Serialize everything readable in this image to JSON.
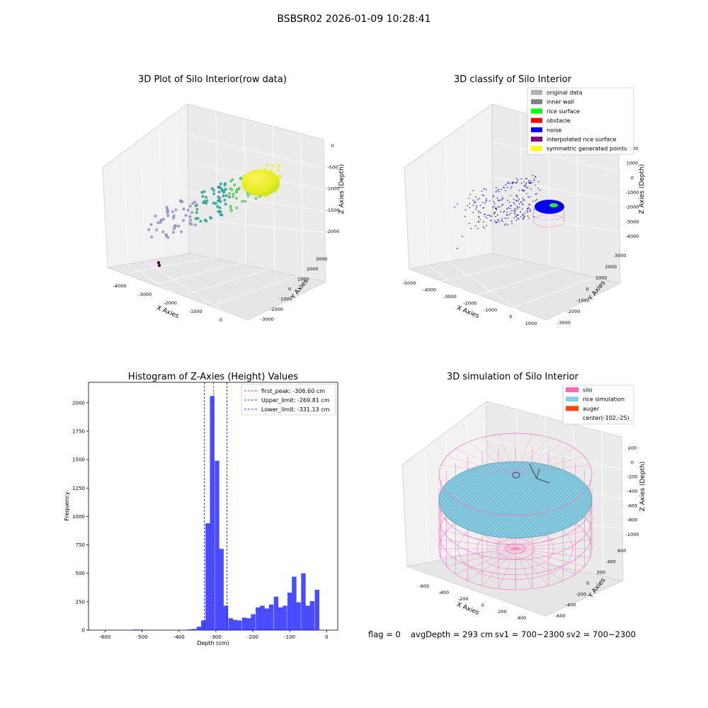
{
  "figure": {
    "suptitle": "BSBSR02 2026-01-09 10:28:41",
    "footer": {
      "flag": "flag = 0",
      "avg_depth": "avgDepth = 293 cm",
      "sv1": "sv1 = 700~2300",
      "sv2": "sv2 = 700~2300"
    }
  },
  "chart_data": [
    {
      "type": "scatter",
      "projection": "3d",
      "title": "3D Plot of Silo Interior(row data)",
      "xlabel": "X Axies",
      "ylabel": "Y Axies",
      "zlabel": "Z Axies (Depth)",
      "x_ticks": [
        "-4000",
        "-3000",
        "-2000",
        "-1000",
        "0"
      ],
      "y_ticks": [
        "-3000",
        "-2000",
        "-1000",
        "0",
        "1000",
        "2000",
        "3000"
      ],
      "z_ticks": [
        "0",
        "-500",
        "-1000",
        "-1500",
        "-2000"
      ],
      "colormap": "viridis",
      "description_colors": [
        "#440154",
        "#8c92c1",
        "#2a9d8f",
        "#5ec962",
        "#fde725"
      ]
    },
    {
      "type": "scatter",
      "projection": "3d",
      "title": "3D classify of Silo Interior",
      "xlabel": "X Axies",
      "ylabel": "Y Axies",
      "zlabel": "Z Axies (Depth)",
      "x_ticks": [
        "-5000",
        "-4000",
        "-3000",
        "-2000",
        "-1000",
        "0",
        "1000"
      ],
      "y_ticks": [
        "-3000",
        "-2000",
        "-1000",
        "0",
        "1000",
        "2000",
        "3000"
      ],
      "z_ticks": [
        "2000",
        "1000",
        "0",
        "-1000",
        "-2000",
        "-3000",
        "-4000"
      ],
      "legend_position": "top-right",
      "legend": [
        {
          "label": "original data",
          "color": "#b3b3b3"
        },
        {
          "label": "inner wall",
          "color": "#808080"
        },
        {
          "label": "rice surface",
          "color": "#00ff00"
        },
        {
          "label": "obstacle",
          "color": "#ff0000"
        },
        {
          "label": "noise",
          "color": "#0000ff"
        },
        {
          "label": "interpolated rice surface",
          "color": "#800080"
        },
        {
          "label": "symmetric generated points",
          "color": "#ffff00"
        }
      ]
    },
    {
      "type": "bar",
      "title": "Histogram of Z-Axies (Height) Values",
      "xlabel": "Depth (cm)",
      "ylabel": "Frequency",
      "xlim": [
        -645,
        30
      ],
      "ylim": [
        0,
        2180
      ],
      "x_ticks": [
        -600,
        -500,
        -400,
        -300,
        -200,
        -100,
        0
      ],
      "y_ticks": [
        0,
        250,
        500,
        750,
        1000,
        1250,
        1500,
        1750,
        2000
      ],
      "bar_color": "#0000ff",
      "bin_width": 12.3,
      "bins": [
        {
          "x": -519,
          "y": 5
        },
        {
          "x": -506,
          "y": 5
        },
        {
          "x": -470,
          "y": 3
        },
        {
          "x": -383,
          "y": 2
        },
        {
          "x": -371,
          "y": 6
        },
        {
          "x": -359,
          "y": 10
        },
        {
          "x": -346,
          "y": 30
        },
        {
          "x": -334,
          "y": 85
        },
        {
          "x": -322,
          "y": 940
        },
        {
          "x": -310,
          "y": 2060
        },
        {
          "x": -297,
          "y": 1490
        },
        {
          "x": -285,
          "y": 715
        },
        {
          "x": -273,
          "y": 215
        },
        {
          "x": -260,
          "y": 105
        },
        {
          "x": -248,
          "y": 90
        },
        {
          "x": -236,
          "y": 85
        },
        {
          "x": -223,
          "y": 110
        },
        {
          "x": -211,
          "y": 105
        },
        {
          "x": -199,
          "y": 140
        },
        {
          "x": -186,
          "y": 200
        },
        {
          "x": -174,
          "y": 215
        },
        {
          "x": -162,
          "y": 190
        },
        {
          "x": -150,
          "y": 225
        },
        {
          "x": -137,
          "y": 295
        },
        {
          "x": -125,
          "y": 200
        },
        {
          "x": -113,
          "y": 215
        },
        {
          "x": -100,
          "y": 330
        },
        {
          "x": -88,
          "y": 470
        },
        {
          "x": -76,
          "y": 245
        },
        {
          "x": -63,
          "y": 500
        },
        {
          "x": -51,
          "y": 215
        },
        {
          "x": -39,
          "y": 255
        },
        {
          "x": -26,
          "y": 355
        }
      ],
      "vlines": [
        {
          "x": -306.6,
          "color": "#ff0000",
          "label": "first_peak: -306.60 cm"
        },
        {
          "x": -269.81,
          "color": "#0000ff",
          "label": "Upper_limit: -269.81 cm"
        },
        {
          "x": -331.13,
          "color": "#0000ff",
          "label": "Lower_limit: -331.13 cm"
        }
      ],
      "legend_position": "top-right"
    },
    {
      "type": "surface",
      "projection": "3d",
      "title": "3D simulation of Silo Interior",
      "xlabel": "X Axies",
      "ylabel": "Y Axies",
      "zlabel": "Z Axies (Depth)",
      "x_ticks": [
        "-600",
        "-400",
        "-200",
        "0",
        "200",
        "400"
      ],
      "y_ticks": [
        "-600",
        "-400",
        "-200",
        "0",
        "200",
        "400",
        "600"
      ],
      "z_ticks": [
        "200",
        "0",
        "-200",
        "-400",
        "-600",
        "-800",
        "-1000"
      ],
      "legend_position": "top-right",
      "legend": [
        {
          "label": "silo",
          "color": "#ff69b4"
        },
        {
          "label": "rice simulation",
          "color": "#87ceeb"
        },
        {
          "label": "auger",
          "color": "#ff4500"
        },
        {
          "label": "center(-102,-25)",
          "color": ""
        }
      ]
    }
  ]
}
